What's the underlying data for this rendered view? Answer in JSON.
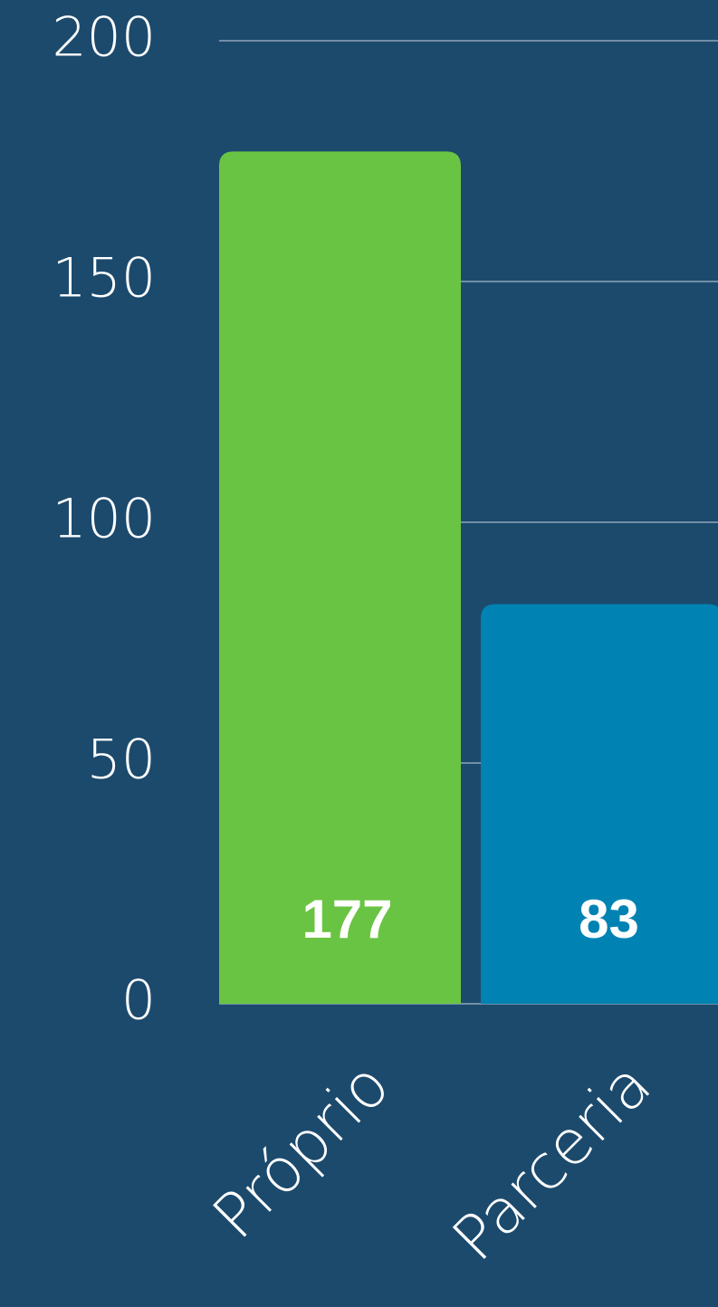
{
  "chart_data": {
    "type": "bar",
    "categories": [
      "Próprio",
      "Parceria"
    ],
    "values": [
      177,
      83
    ],
    "colors": [
      "#6ac443",
      "#0083b3"
    ],
    "ylim": [
      0,
      200
    ],
    "yticks": [
      0,
      50,
      100,
      150,
      200
    ],
    "grid": true
  }
}
